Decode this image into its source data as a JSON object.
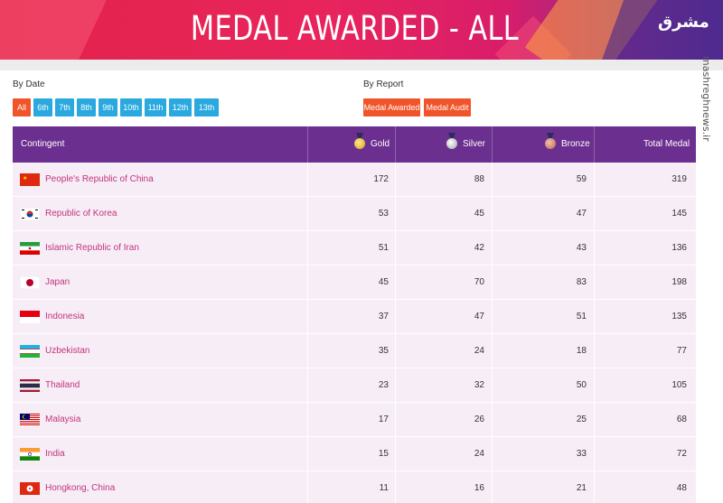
{
  "header": {
    "title": "MEDAL AWARDED - ALL"
  },
  "watermark": {
    "logo": "مشرق",
    "site": "mashreghnews.ir"
  },
  "filters": {
    "by_date_label": "By Date",
    "by_report_label": "By Report",
    "date_buttons": [
      "All",
      "6th",
      "7th",
      "8th",
      "9th",
      "10th",
      "11th",
      "12th",
      "13th"
    ],
    "report_buttons": [
      "Medal Awarded",
      "Medal Audit"
    ]
  },
  "table": {
    "headers": {
      "contingent": "Contingent",
      "gold": "Gold",
      "silver": "Silver",
      "bronze": "Bronze",
      "total": "Total Medal"
    },
    "rows": [
      {
        "country": "People's Republic of China",
        "flag": "china-flag-icon",
        "gold": "172",
        "silver": "88",
        "bronze": "59",
        "total": "319"
      },
      {
        "country": "Republic of Korea",
        "flag": "korea-flag-icon",
        "gold": "53",
        "silver": "45",
        "bronze": "47",
        "total": "145"
      },
      {
        "country": "Islamic Republic of Iran",
        "flag": "iran-flag-icon",
        "gold": "51",
        "silver": "42",
        "bronze": "43",
        "total": "136"
      },
      {
        "country": "Japan",
        "flag": "japan-flag-icon",
        "gold": "45",
        "silver": "70",
        "bronze": "83",
        "total": "198"
      },
      {
        "country": "Indonesia",
        "flag": "indonesia-flag-icon",
        "gold": "37",
        "silver": "47",
        "bronze": "51",
        "total": "135"
      },
      {
        "country": "Uzbekistan",
        "flag": "uzbekistan-flag-icon",
        "gold": "35",
        "silver": "24",
        "bronze": "18",
        "total": "77"
      },
      {
        "country": "Thailand",
        "flag": "thailand-flag-icon",
        "gold": "23",
        "silver": "32",
        "bronze": "50",
        "total": "105"
      },
      {
        "country": "Malaysia",
        "flag": "malaysia-flag-icon",
        "gold": "17",
        "silver": "26",
        "bronze": "25",
        "total": "68"
      },
      {
        "country": "India",
        "flag": "india-flag-icon",
        "gold": "15",
        "silver": "24",
        "bronze": "33",
        "total": "72"
      },
      {
        "country": "Hongkong, China",
        "flag": "hongkong-flag-icon",
        "gold": "11",
        "silver": "16",
        "bronze": "21",
        "total": "48"
      }
    ]
  },
  "colors": {
    "header_purple": "#6b2f8f",
    "row_bg": "#f7edf7",
    "link_pink": "#c2347a",
    "button_orange": "#f0542b",
    "button_blue": "#29a9df"
  }
}
